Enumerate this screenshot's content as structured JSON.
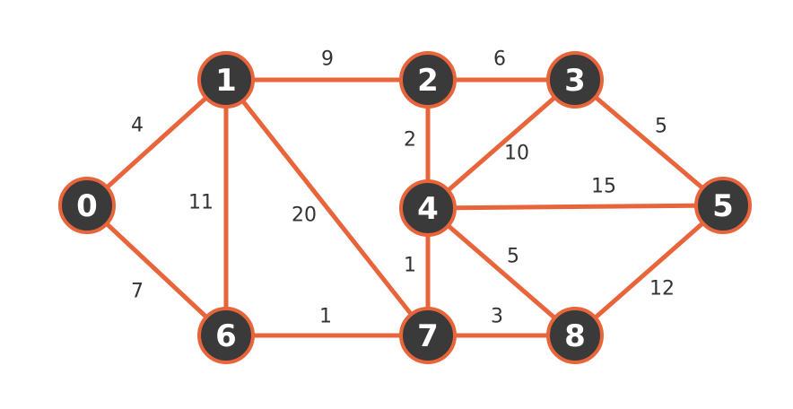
{
  "colors": {
    "edge": "#E8643A",
    "node_fill": "#3A3A3A",
    "node_stroke": "#E8643A",
    "label_text": "#333333",
    "node_text": "#FFFFFF"
  },
  "graph": {
    "nodes": [
      {
        "id": "0",
        "label": "0"
      },
      {
        "id": "1",
        "label": "1"
      },
      {
        "id": "2",
        "label": "2"
      },
      {
        "id": "3",
        "label": "3"
      },
      {
        "id": "4",
        "label": "4"
      },
      {
        "id": "5",
        "label": "5"
      },
      {
        "id": "6",
        "label": "6"
      },
      {
        "id": "7",
        "label": "7"
      },
      {
        "id": "8",
        "label": "8"
      }
    ],
    "edges": [
      {
        "from": "0",
        "to": "1",
        "weight": "4"
      },
      {
        "from": "0",
        "to": "6",
        "weight": "7"
      },
      {
        "from": "1",
        "to": "2",
        "weight": "9"
      },
      {
        "from": "1",
        "to": "6",
        "weight": "11"
      },
      {
        "from": "1",
        "to": "7",
        "weight": "20"
      },
      {
        "from": "2",
        "to": "3",
        "weight": "6"
      },
      {
        "from": "2",
        "to": "4",
        "weight": "2"
      },
      {
        "from": "3",
        "to": "4",
        "weight": "10"
      },
      {
        "from": "3",
        "to": "5",
        "weight": "5"
      },
      {
        "from": "4",
        "to": "5",
        "weight": "15"
      },
      {
        "from": "4",
        "to": "7",
        "weight": "1"
      },
      {
        "from": "4",
        "to": "8",
        "weight": "5"
      },
      {
        "from": "5",
        "to": "8",
        "weight": "12"
      },
      {
        "from": "6",
        "to": "7",
        "weight": "1"
      },
      {
        "from": "7",
        "to": "8",
        "weight": "3"
      }
    ]
  }
}
